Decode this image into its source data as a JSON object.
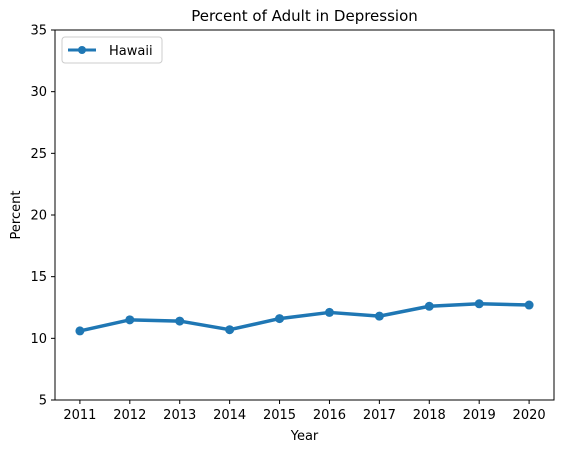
{
  "chart_data": {
    "type": "line",
    "title": "Percent of Adult in Depression",
    "xlabel": "Year",
    "ylabel": "Percent",
    "x": [
      2011,
      2012,
      2013,
      2014,
      2015,
      2016,
      2017,
      2018,
      2019,
      2020
    ],
    "series": [
      {
        "name": "Hawaii",
        "values": [
          10.6,
          11.5,
          11.4,
          10.7,
          11.6,
          12.1,
          11.8,
          12.6,
          12.8,
          12.7
        ],
        "color": "#1f77b4"
      }
    ],
    "ylim": [
      5,
      35
    ],
    "yticks": [
      5,
      10,
      15,
      20,
      25,
      30,
      35
    ],
    "grid": false,
    "legend_position": "top-left"
  }
}
